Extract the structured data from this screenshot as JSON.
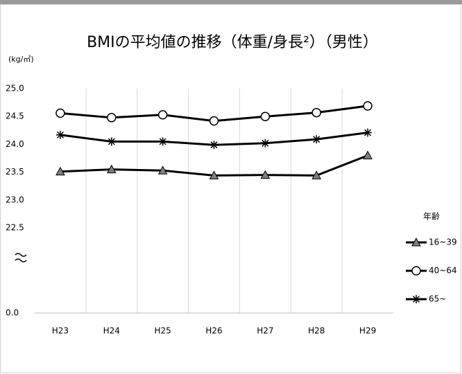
{
  "chart_data": {
    "type": "line",
    "title": "BMIの平均値の推移（体重/身長²）（男性）",
    "y_unit": "(kg/㎡)",
    "categories": [
      "H23",
      "H24",
      "H25",
      "H26",
      "H27",
      "H28",
      "H29"
    ],
    "series": [
      {
        "name": "16~39",
        "color": "#000000",
        "marker": "triangle",
        "values": [
          23.51,
          23.55,
          23.53,
          23.44,
          23.45,
          23.44,
          23.8
        ]
      },
      {
        "name": "40~64",
        "color": "#000000",
        "marker": "circle",
        "values": [
          24.56,
          24.48,
          24.53,
          24.42,
          24.5,
          24.57,
          24.69
        ]
      },
      {
        "name": "65~",
        "color": "#000000",
        "marker": "asterisk",
        "values": [
          24.17,
          24.05,
          24.05,
          23.99,
          24.02,
          24.09,
          24.21
        ]
      }
    ],
    "ylim": [
      0,
      25.0
    ],
    "y_break": [
      0,
      22.5
    ],
    "yticks": [
      {
        "value": 25.0,
        "label": "25.0"
      },
      {
        "value": 24.5,
        "label": "24.5"
      },
      {
        "value": 24.0,
        "label": "24.0"
      },
      {
        "value": 23.5,
        "label": "23.5"
      },
      {
        "value": 23.0,
        "label": "23.0"
      },
      {
        "value": 22.5,
        "label": "22.5"
      },
      {
        "value": 0,
        "label": "0.0"
      }
    ],
    "legend_title": "年齢",
    "legend_position": "right",
    "grid": "vertical"
  }
}
